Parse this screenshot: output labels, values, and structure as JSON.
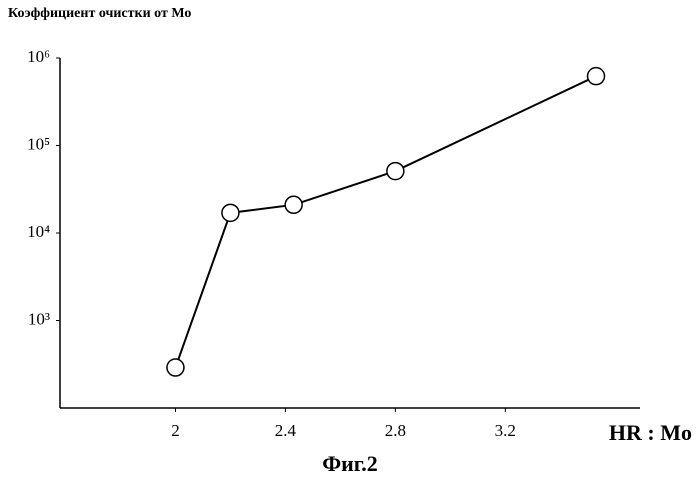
{
  "chart_data": {
    "type": "line",
    "title": "Коэффициент очистки от Мо",
    "x_label": "HR : Mo",
    "caption": "Фиг.2",
    "log_y": true,
    "color": "#000000",
    "x": [
      2.0,
      2.2,
      2.43,
      2.8,
      3.53
    ],
    "values": [
      290,
      17000,
      21000,
      51000,
      620000
    ],
    "xlim": [
      1.58,
      3.69
    ],
    "xticks": [
      2,
      2.4,
      2.8,
      3.2
    ],
    "ylim": [
      100,
      1000000
    ],
    "yticks": [
      {
        "value": 1000,
        "label": "10³"
      },
      {
        "value": 10000,
        "label": "10⁴"
      },
      {
        "value": 100000,
        "label": "10⁵"
      },
      {
        "value": 1000000,
        "label": "10⁶"
      }
    ]
  }
}
